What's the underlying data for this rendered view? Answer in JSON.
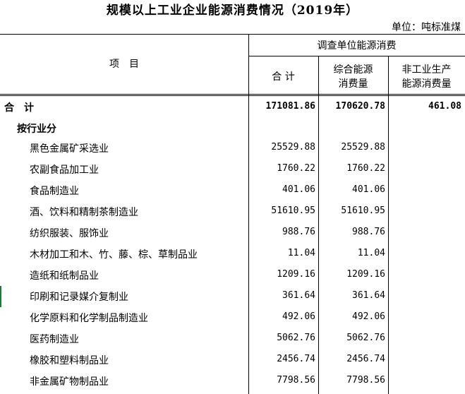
{
  "title": "规模以上工业企业能源消费情况（2019年）",
  "unit": "单位：吨标准煤",
  "header": {
    "item": "项　目",
    "group": "调查单位能源消费",
    "col_total": "合 计",
    "col_energy_line1": "综合能源",
    "col_energy_line2": "消费量",
    "col_nonind_line1": "非工业生产",
    "col_nonind_line2": "能源消费量"
  },
  "total_row": {
    "label": "合　计",
    "total": "171081.86",
    "energy": "170620.78",
    "nonind": "461.08"
  },
  "section_label": "按行业分",
  "rows": [
    {
      "label": "黑色金属矿采选业",
      "total": "25529.88",
      "energy": "25529.88"
    },
    {
      "label": "农副食品加工业",
      "total": "1760.22",
      "energy": "1760.22"
    },
    {
      "label": "食品制造业",
      "total": "401.06",
      "energy": "401.06"
    },
    {
      "label": "酒、饮料和精制茶制造业",
      "total": "51610.95",
      "energy": "51610.95"
    },
    {
      "label": "纺织服装、服饰业",
      "total": "988.76",
      "energy": "988.76"
    },
    {
      "label": "木材加工和木、竹、藤、棕、草制品业",
      "total": "11.04",
      "energy": "11.04"
    },
    {
      "label": "造纸和纸制品业",
      "total": "1209.16",
      "energy": "1209.16"
    },
    {
      "label": "印刷和记录媒介复制业",
      "total": "361.64",
      "energy": "361.64"
    },
    {
      "label": "化学原料和化学制品制造业",
      "total": "492.06",
      "energy": "492.06"
    },
    {
      "label": "医药制造业",
      "total": "5062.76",
      "energy": "5062.76"
    },
    {
      "label": "橡胶和塑料制品业",
      "total": "2456.74",
      "energy": "2456.74"
    },
    {
      "label": "非金属矿物制品业",
      "total": "7798.56",
      "energy": "7798.56"
    }
  ]
}
